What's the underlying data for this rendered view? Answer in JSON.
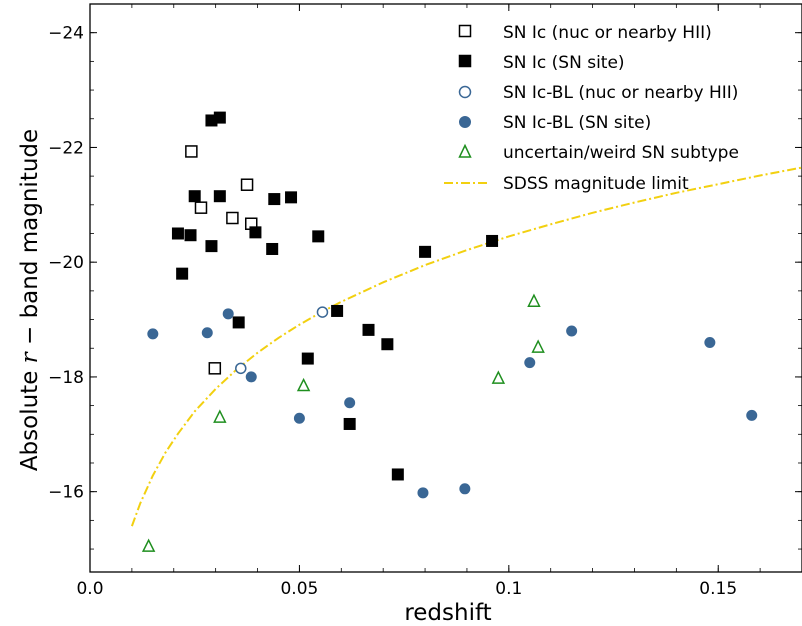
{
  "chart_data": {
    "type": "scatter",
    "xlabel": "redshift",
    "ylabel_prefix": "Absolute ",
    "ylabel_italic": "r",
    "ylabel_suffix": " − band magnitude",
    "xlim": [
      0.0,
      0.17
    ],
    "ylim": [
      -14.6,
      -24.5
    ],
    "xticks": [
      {
        "value": 0.0,
        "label": "0.0"
      },
      {
        "value": 0.05,
        "label": "0.05"
      },
      {
        "value": 0.1,
        "label": "0.1"
      },
      {
        "value": 0.15,
        "label": "0.15"
      }
    ],
    "yticks": [
      {
        "value": -24,
        "label": "−24"
      },
      {
        "value": -22,
        "label": "−22"
      },
      {
        "value": -20,
        "label": "−20"
      },
      {
        "value": -18,
        "label": "−18"
      },
      {
        "value": -16,
        "label": "−16"
      }
    ],
    "grid": false,
    "legend_position": "top-right",
    "colors": {
      "black": "#000000",
      "blue": "#3a6795",
      "green": "#1f8f1f",
      "yellow": "#f2d010"
    },
    "series": [
      {
        "name": "SN Ic (nuc or nearby HII)",
        "marker": "open-square",
        "color": "#000000",
        "points": [
          [
            0.0242,
            -21.93
          ],
          [
            0.0265,
            -20.95
          ],
          [
            0.0298,
            -18.15
          ],
          [
            0.034,
            -20.77
          ],
          [
            0.0375,
            -21.35
          ],
          [
            0.0385,
            -20.67
          ]
        ]
      },
      {
        "name": "SN Ic (SN site)",
        "marker": "filled-square",
        "color": "#000000",
        "points": [
          [
            0.021,
            -20.5
          ],
          [
            0.022,
            -19.8
          ],
          [
            0.024,
            -20.47
          ],
          [
            0.025,
            -21.15
          ],
          [
            0.029,
            -22.47
          ],
          [
            0.031,
            -22.52
          ],
          [
            0.031,
            -21.15
          ],
          [
            0.029,
            -20.28
          ],
          [
            0.0355,
            -18.95
          ],
          [
            0.0395,
            -20.52
          ],
          [
            0.0435,
            -20.23
          ],
          [
            0.044,
            -21.1
          ],
          [
            0.048,
            -21.13
          ],
          [
            0.052,
            -18.32
          ],
          [
            0.0545,
            -20.45
          ],
          [
            0.059,
            -19.15
          ],
          [
            0.062,
            -17.18
          ],
          [
            0.0665,
            -18.82
          ],
          [
            0.071,
            -18.57
          ],
          [
            0.0735,
            -16.3
          ],
          [
            0.08,
            -20.18
          ],
          [
            0.096,
            -20.37
          ]
        ]
      },
      {
        "name": "SN Ic-BL (nuc or nearby HII)",
        "marker": "open-circle",
        "color": "#3a6795",
        "points": [
          [
            0.036,
            -18.15
          ],
          [
            0.0555,
            -19.13
          ]
        ]
      },
      {
        "name": "SN Ic-BL (SN site)",
        "marker": "filled-circle",
        "color": "#3a6795",
        "points": [
          [
            0.015,
            -18.75
          ],
          [
            0.028,
            -18.77
          ],
          [
            0.033,
            -19.1
          ],
          [
            0.0385,
            -18.0
          ],
          [
            0.05,
            -17.28
          ],
          [
            0.062,
            -17.55
          ],
          [
            0.0795,
            -15.98
          ],
          [
            0.0895,
            -16.05
          ],
          [
            0.105,
            -18.25
          ],
          [
            0.115,
            -18.8
          ],
          [
            0.148,
            -18.6
          ],
          [
            0.158,
            -17.33
          ]
        ]
      },
      {
        "name": "uncertain/weird SN subtype",
        "marker": "open-triangle",
        "color": "#1f8f1f",
        "points": [
          [
            0.014,
            -15.05
          ],
          [
            0.031,
            -17.3
          ],
          [
            0.051,
            -17.85
          ],
          [
            0.0975,
            -17.98
          ],
          [
            0.106,
            -19.32
          ],
          [
            0.107,
            -18.52
          ]
        ]
      }
    ],
    "limit_curve": {
      "name": "SDSS magnitude limit",
      "style": "dash-dot",
      "color": "#f2d010",
      "x": [
        0.01,
        0.012,
        0.015,
        0.018,
        0.021,
        0.025,
        0.03,
        0.035,
        0.04,
        0.045,
        0.05,
        0.055,
        0.06,
        0.07,
        0.08,
        0.09,
        0.1,
        0.11,
        0.12,
        0.13,
        0.14,
        0.15,
        0.16,
        0.17
      ],
      "y": [
        -15.4,
        -15.8,
        -16.28,
        -16.68,
        -17.01,
        -17.4,
        -17.79,
        -18.13,
        -18.42,
        -18.68,
        -18.91,
        -19.12,
        -19.31,
        -19.65,
        -19.95,
        -20.21,
        -20.45,
        -20.66,
        -20.86,
        -21.04,
        -21.21,
        -21.36,
        -21.51,
        -21.65
      ]
    }
  }
}
